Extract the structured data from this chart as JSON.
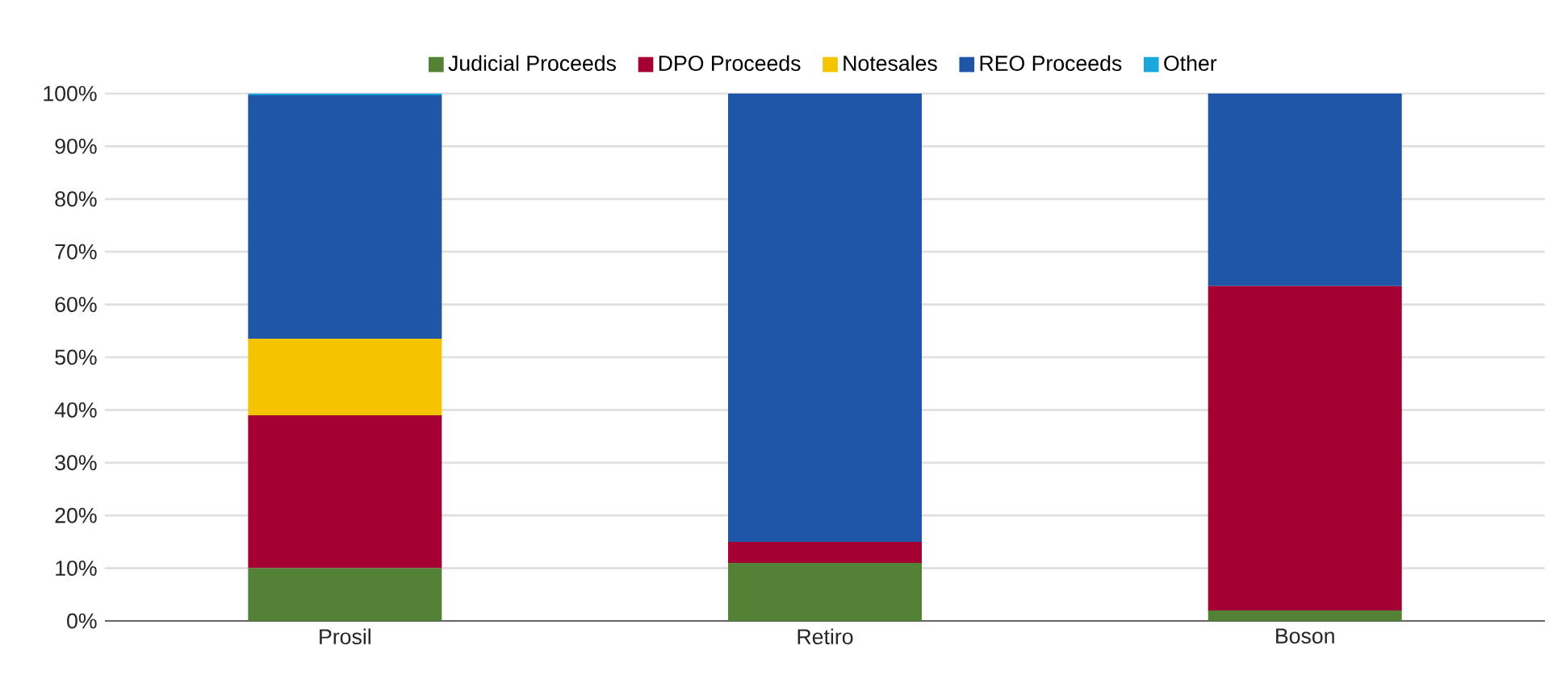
{
  "chart_data": {
    "type": "bar",
    "stacked": true,
    "categories": [
      "Prosil",
      "Retiro",
      "Boson"
    ],
    "series": [
      {
        "name": "Judicial Proceeds",
        "color": "#538135",
        "values": [
          10,
          11,
          2
        ]
      },
      {
        "name": "DPO Proceeds",
        "color": "#a50034",
        "values": [
          29,
          4,
          61.5
        ]
      },
      {
        "name": "Notesales",
        "color": "#f5c400",
        "values": [
          14.5,
          0,
          0
        ]
      },
      {
        "name": "REO Proceeds",
        "color": "#1f56a8",
        "values": [
          46.2,
          85,
          36.5
        ]
      },
      {
        "name": "Other",
        "color": "#1aa7dc",
        "values": [
          0.3,
          0,
          0
        ]
      }
    ],
    "ylim": [
      0,
      100
    ],
    "yticks": [
      {
        "value": 0,
        "label": "0%"
      },
      {
        "value": 10,
        "label": "10%"
      },
      {
        "value": 20,
        "label": "20%"
      },
      {
        "value": 30,
        "label": "30%"
      },
      {
        "value": 40,
        "label": "40%"
      },
      {
        "value": 50,
        "label": "50%"
      },
      {
        "value": 60,
        "label": "60%"
      },
      {
        "value": 70,
        "label": "70%"
      },
      {
        "value": 80,
        "label": "80%"
      },
      {
        "value": 90,
        "label": "90%"
      },
      {
        "value": 100,
        "label": "100%"
      }
    ],
    "grid": "y",
    "legend": "top"
  }
}
